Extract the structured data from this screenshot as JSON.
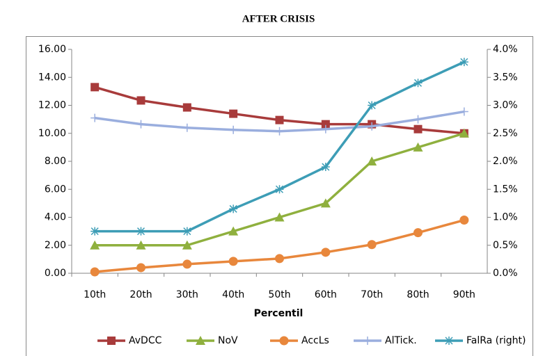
{
  "chart_data": {
    "type": "line",
    "title": "AFTER CRISIS",
    "x_label": "Percentil",
    "categories": [
      "10th",
      "20th",
      "30th",
      "40th",
      "50th",
      "60th",
      "70th",
      "80th",
      "90th"
    ],
    "series": [
      {
        "name": "AvDCC",
        "color": "#a83b3b",
        "marker": "square",
        "values": [
          13.3,
          12.35,
          11.85,
          11.4,
          10.95,
          10.65,
          10.65,
          10.3,
          10.0
        ]
      },
      {
        "name": "NoV",
        "color": "#8fb03e",
        "marker": "triangle",
        "values": [
          2,
          2,
          2,
          3,
          4,
          5,
          8,
          9,
          10
        ]
      },
      {
        "name": "AccLs",
        "color": "#e8873c",
        "marker": "circle",
        "values": [
          0.1,
          0.4,
          0.65,
          0.85,
          1.05,
          1.5,
          2.05,
          2.9,
          3.8
        ]
      },
      {
        "name": "AlTick.",
        "color": "#9aaede",
        "marker": "plus",
        "values": [
          11.1,
          10.65,
          10.4,
          10.25,
          10.15,
          10.3,
          10.5,
          11.0,
          11.55
        ]
      },
      {
        "name": "FalRa (right)",
        "color": "#3d9db6",
        "marker": "star",
        "axis": "y2",
        "values": [
          0.75,
          0.75,
          0.75,
          1.15,
          1.5,
          1.9,
          3.0,
          3.4,
          3.775
        ]
      }
    ],
    "ylim": [
      0,
      16
    ],
    "yticks": [
      {
        "value": 0,
        "label": "0.00"
      },
      {
        "value": 2,
        "label": "2.00"
      },
      {
        "value": 4,
        "label": "4.00"
      },
      {
        "value": 6,
        "label": "6.00"
      },
      {
        "value": 8,
        "label": "8.00"
      },
      {
        "value": 10,
        "label": "10.00"
      },
      {
        "value": 12,
        "label": "12.00"
      },
      {
        "value": 14,
        "label": "14.00"
      },
      {
        "value": 16,
        "label": "16.00"
      }
    ],
    "y2lim": [
      0,
      4
    ],
    "y2ticks": [
      {
        "value": 0,
        "label": "0.0%"
      },
      {
        "value": 0.5,
        "label": "0.5%"
      },
      {
        "value": 1,
        "label": "1.0%"
      },
      {
        "value": 1.5,
        "label": "1.5%"
      },
      {
        "value": 2,
        "label": "2.0%"
      },
      {
        "value": 2.5,
        "label": "2.5%"
      },
      {
        "value": 3,
        "label": "3.0%"
      },
      {
        "value": 3.5,
        "label": "3.5%"
      },
      {
        "value": 4,
        "label": "4.0%"
      }
    ],
    "legend": "bottom"
  }
}
